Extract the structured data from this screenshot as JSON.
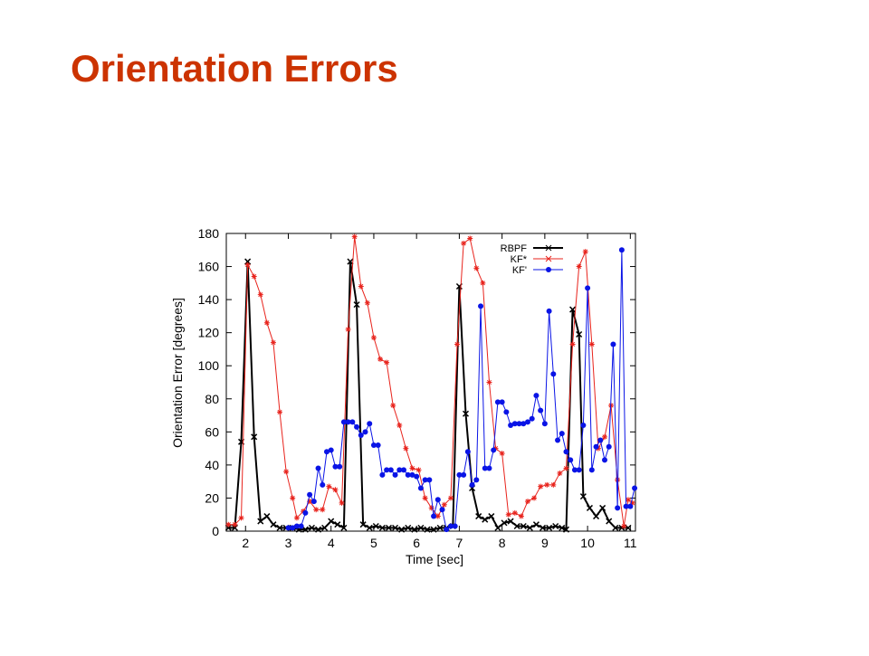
{
  "chart_data": {
    "type": "line",
    "title": "Orientation Errors",
    "xlabel": "Time [sec]",
    "ylabel": "Orientation Error [degrees]",
    "xlim": [
      1.55,
      11.12
    ],
    "ylim": [
      0,
      180
    ],
    "xticks": [
      2,
      3,
      4,
      5,
      6,
      7,
      8,
      9,
      10,
      11
    ],
    "yticks": [
      0,
      20,
      40,
      60,
      80,
      100,
      120,
      140,
      160,
      180
    ],
    "series": [
      {
        "name": "RBPF",
        "color": "#000000",
        "marker": "x",
        "x": [
          1.6,
          1.75,
          1.9,
          2.05,
          2.2,
          2.35,
          2.5,
          2.65,
          2.8,
          2.95,
          3.1,
          3.25,
          3.4,
          3.55,
          3.7,
          3.85,
          4.0,
          4.15,
          4.3,
          4.45,
          4.6,
          4.75,
          4.9,
          5.05,
          5.2,
          5.35,
          5.5,
          5.65,
          5.8,
          5.95,
          6.1,
          6.25,
          6.4,
          6.55,
          6.7,
          6.85,
          7.0,
          7.15,
          7.3,
          7.45,
          7.6,
          7.75,
          7.9,
          8.05,
          8.2,
          8.35,
          8.5,
          8.65,
          8.8,
          8.95,
          9.1,
          9.25,
          9.4,
          9.5,
          9.65,
          9.8,
          9.9,
          10.05,
          10.2,
          10.35,
          10.5,
          10.65,
          10.8,
          10.95
        ],
        "values": [
          2,
          2,
          54,
          163,
          57,
          6,
          9,
          4,
          2,
          2,
          2,
          1,
          1,
          2,
          1,
          2,
          6,
          4,
          2,
          163,
          137,
          4,
          2,
          3,
          2,
          2,
          2,
          1,
          2,
          1,
          2,
          1,
          1,
          2,
          2,
          3,
          148,
          71,
          26,
          9,
          7,
          9,
          2,
          5,
          6,
          3,
          3,
          2,
          4,
          2,
          2,
          3,
          2,
          1,
          134,
          119,
          21,
          14,
          9,
          14,
          6,
          2,
          2,
          2
        ]
      },
      {
        "name": "KF*",
        "color": "#e8231c",
        "marker": "star",
        "x": [
          1.6,
          1.75,
          1.9,
          2.05,
          2.2,
          2.35,
          2.5,
          2.65,
          2.8,
          2.95,
          3.1,
          3.2,
          3.35,
          3.5,
          3.65,
          3.8,
          3.95,
          4.1,
          4.25,
          4.4,
          4.55,
          4.7,
          4.85,
          5.0,
          5.15,
          5.3,
          5.45,
          5.6,
          5.75,
          5.9,
          6.05,
          6.2,
          6.35,
          6.5,
          6.65,
          6.8,
          6.95,
          7.1,
          7.25,
          7.4,
          7.55,
          7.7,
          7.85,
          8.0,
          8.15,
          8.3,
          8.45,
          8.6,
          8.75,
          8.9,
          9.05,
          9.2,
          9.35,
          9.5,
          9.65,
          9.8,
          9.95,
          10.1,
          10.25,
          10.4,
          10.55,
          10.7,
          10.85,
          10.95,
          11.05
        ],
        "values": [
          4,
          4,
          8,
          161,
          154,
          143,
          126,
          114,
          72,
          36,
          20,
          8,
          12,
          18,
          13,
          13,
          27,
          25,
          17,
          122,
          178,
          148,
          138,
          117,
          104,
          102,
          76,
          64,
          50,
          38,
          37,
          20,
          14,
          9,
          16,
          20,
          113,
          174,
          177,
          159,
          150,
          90,
          50,
          47,
          10,
          11,
          9,
          18,
          20,
          27,
          28,
          28,
          35,
          38,
          113,
          160,
          169,
          113,
          50,
          57,
          76,
          31,
          3,
          19,
          17
        ]
      },
      {
        "name": "KF'",
        "color": "#0a14e6",
        "marker": "circle",
        "x": [
          3.0,
          3.1,
          3.2,
          3.3,
          3.4,
          3.5,
          3.6,
          3.7,
          3.8,
          3.9,
          4.0,
          4.1,
          4.2,
          4.3,
          4.4,
          4.5,
          4.6,
          4.7,
          4.8,
          4.9,
          5.0,
          5.1,
          5.2,
          5.3,
          5.4,
          5.5,
          5.6,
          5.7,
          5.8,
          5.9,
          6.0,
          6.1,
          6.2,
          6.3,
          6.4,
          6.5,
          6.6,
          6.7,
          6.8,
          6.9,
          7.0,
          7.1,
          7.2,
          7.3,
          7.4,
          7.5,
          7.6,
          7.7,
          7.8,
          7.9,
          8.0,
          8.1,
          8.2,
          8.3,
          8.4,
          8.5,
          8.6,
          8.7,
          8.8,
          8.9,
          9.0,
          9.1,
          9.2,
          9.3,
          9.4,
          9.5,
          9.6,
          9.7,
          9.8,
          9.9,
          10.0,
          10.1,
          10.2,
          10.3,
          10.4,
          10.5,
          10.6,
          10.7,
          10.8,
          10.9,
          11.0,
          11.1
        ],
        "values": [
          2,
          2,
          3,
          3,
          11,
          22,
          18,
          38,
          28,
          48,
          49,
          39,
          39,
          66,
          66,
          66,
          63,
          58,
          60,
          65,
          52,
          52,
          34,
          37,
          37,
          34,
          37,
          37,
          34,
          34,
          33,
          26,
          31,
          31,
          9,
          19,
          13,
          1,
          3,
          3,
          34,
          34,
          48,
          28,
          31,
          136,
          38,
          38,
          49,
          78,
          78,
          72,
          64,
          65,
          65,
          65,
          66,
          68,
          82,
          73,
          65,
          133,
          95,
          55,
          59,
          48,
          43,
          37,
          37,
          64,
          147,
          37,
          51,
          55,
          43,
          51,
          113,
          14,
          170,
          15,
          15,
          26
        ]
      }
    ]
  }
}
